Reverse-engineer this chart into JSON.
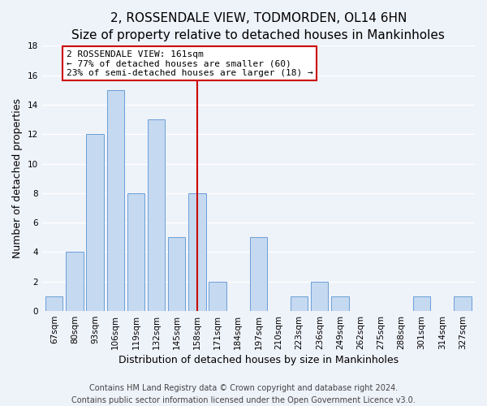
{
  "title": "2, ROSSENDALE VIEW, TODMORDEN, OL14 6HN",
  "subtitle": "Size of property relative to detached houses in Mankinholes",
  "xlabel": "Distribution of detached houses by size in Mankinholes",
  "ylabel": "Number of detached properties",
  "bar_labels": [
    "67sqm",
    "80sqm",
    "93sqm",
    "106sqm",
    "119sqm",
    "132sqm",
    "145sqm",
    "158sqm",
    "171sqm",
    "184sqm",
    "197sqm",
    "210sqm",
    "223sqm",
    "236sqm",
    "249sqm",
    "262sqm",
    "275sqm",
    "288sqm",
    "301sqm",
    "314sqm",
    "327sqm"
  ],
  "bar_values": [
    1,
    4,
    12,
    15,
    8,
    13,
    5,
    8,
    2,
    0,
    5,
    0,
    1,
    2,
    1,
    0,
    0,
    0,
    1,
    0,
    1
  ],
  "bar_color": "#c5d9f0",
  "bar_edge_color": "#6a9fd8",
  "highlight_index": 7,
  "highlight_line_color": "#cc0000",
  "annotation_line1": "2 ROSSENDALE VIEW: 161sqm",
  "annotation_line2": "← 77% of detached houses are smaller (60)",
  "annotation_line3": "23% of semi-detached houses are larger (18) →",
  "annotation_box_edge_color": "#cc0000",
  "annotation_box_fill_color": "#ffffff",
  "ylim": [
    0,
    18
  ],
  "yticks": [
    0,
    2,
    4,
    6,
    8,
    10,
    12,
    14,
    16,
    18
  ],
  "footer_line1": "Contains HM Land Registry data © Crown copyright and database right 2024.",
  "footer_line2": "Contains public sector information licensed under the Open Government Licence v3.0.",
  "background_color": "#eef2f9",
  "grid_color": "#ffffff",
  "title_fontsize": 11,
  "axis_label_fontsize": 9,
  "tick_fontsize": 7.5,
  "footer_fontsize": 7,
  "ann_fontsize": 8
}
